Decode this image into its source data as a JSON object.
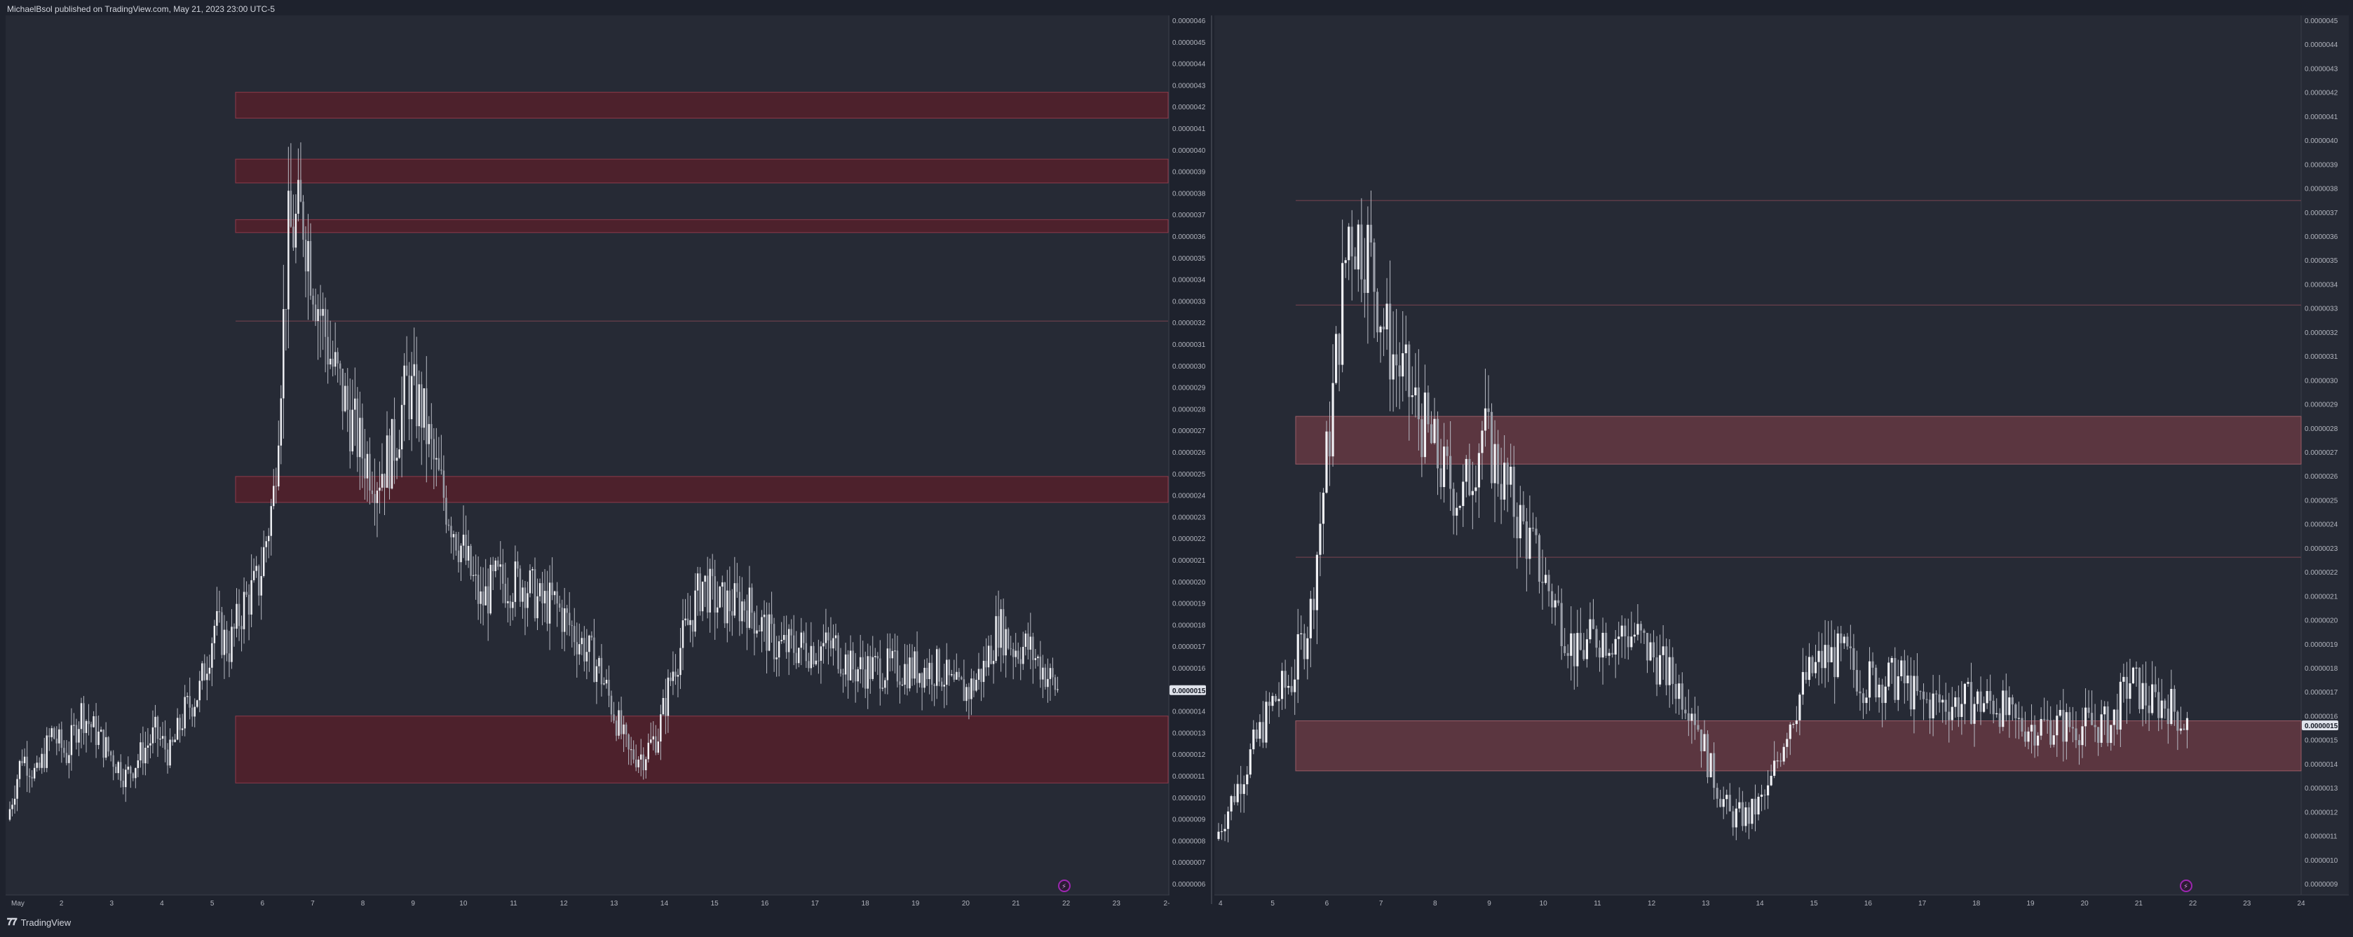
{
  "header": {
    "publisher": "MichaelBsol published on TradingView.com, May 21, 2023 23:00 UTC-5"
  },
  "footer": {
    "brand": "TradingView"
  },
  "colors": {
    "background": "#1e222d",
    "pane": "#262a35",
    "candle": "#e0e3eb",
    "zone_fill_left": "#5b1f2a",
    "zone_fill_right": "#6e3b44",
    "marker": "#9c27b0"
  },
  "chart_data": [
    {
      "type": "candlestick",
      "pane": "left",
      "current_price": "0.0000015",
      "y_ticks": [
        "0.0000046",
        "0.0000045",
        "0.0000044",
        "0.0000043",
        "0.0000042",
        "0.0000041",
        "0.0000040",
        "0.0000039",
        "0.0000038",
        "0.0000037",
        "0.0000036",
        "0.0000035",
        "0.0000034",
        "0.0000033",
        "0.0000032",
        "0.0000031",
        "0.0000030",
        "0.0000029",
        "0.0000028",
        "0.0000027",
        "0.0000026",
        "0.0000025",
        "0.0000024",
        "0.0000023",
        "0.0000022",
        "0.0000021",
        "0.0000020",
        "0.0000019",
        "0.0000018",
        "0.0000017",
        "0.0000016",
        "0.0000015",
        "0.0000014",
        "0.0000013",
        "0.0000012",
        "0.0000011",
        "0.0000010",
        "0.0000009",
        "0.0000008",
        "0.0000007",
        "0.0000006"
      ],
      "ylim": [
        6e-07,
        4.6e-06
      ],
      "x_ticks": [
        "May",
        "2",
        "3",
        "4",
        "5",
        "6",
        "7",
        "8",
        "9",
        "10",
        "11",
        "12",
        "13",
        "14",
        "15",
        "16",
        "17",
        "18",
        "19",
        "20",
        "21",
        "22",
        "23",
        "2-"
      ],
      "zones": [
        {
          "low": 4.15e-06,
          "high": 4.27e-06
        },
        {
          "low": 3.85e-06,
          "high": 3.96e-06
        },
        {
          "low": 3.62e-06,
          "high": 3.68e-06
        },
        {
          "low": 2.37e-06,
          "high": 2.49e-06
        },
        {
          "low": 1.07e-06,
          "high": 1.38e-06
        }
      ],
      "levels": [
        3.21e-06
      ],
      "series": [
        9e-07,
        1.2e-06,
        1.1e-06,
        1.3e-06,
        1.2e-06,
        1.4e-06,
        1.3e-06,
        1.2e-06,
        1.1e-06,
        1.2e-06,
        1.3e-06,
        1.2e-06,
        1.4e-06,
        1.5e-06,
        1.8e-06,
        1.7e-06,
        1.9e-06,
        2e-06,
        2.4e-06,
        3.6e-06,
        3.7e-06,
        3.3e-06,
        3e-06,
        2.8e-06,
        2.6e-06,
        2.5e-06,
        2.6e-06,
        2.9e-06,
        2.8e-06,
        2.5e-06,
        2.3e-06,
        2.1e-06,
        1.9e-06,
        2e-06,
        2e-06,
        2e-06,
        1.9e-06,
        1.9e-06,
        1.8e-06,
        1.7e-06,
        1.6e-06,
        1.4e-06,
        1.2e-06,
        1.2e-06,
        1.3e-06,
        1.6e-06,
        1.8e-06,
        2e-06,
        1.9e-06,
        1.9e-06,
        1.9e-06,
        1.8e-06,
        1.7e-06,
        1.7e-06,
        1.7e-06,
        1.7e-06,
        1.7e-06,
        1.6e-06,
        1.6e-06,
        1.6e-06,
        1.6e-06,
        1.6e-06,
        1.6e-06,
        1.6e-06,
        1.5e-06,
        1.5e-06,
        1.6e-06,
        1.8e-06,
        1.7e-06,
        1.7e-06,
        1.6e-06,
        1.5e-06
      ]
    },
    {
      "type": "candlestick",
      "pane": "right",
      "current_price": "0.0000015",
      "y_ticks": [
        "0.0000045",
        "0.0000044",
        "0.0000043",
        "0.0000042",
        "0.0000041",
        "0.0000040",
        "0.0000039",
        "0.0000038",
        "0.0000037",
        "0.0000036",
        "0.0000035",
        "0.0000034",
        "0.0000033",
        "0.0000032",
        "0.0000031",
        "0.0000030",
        "0.0000029",
        "0.0000028",
        "0.0000027",
        "0.0000026",
        "0.0000025",
        "0.0000024",
        "0.0000023",
        "0.0000022",
        "0.0000021",
        "0.0000020",
        "0.0000019",
        "0.0000018",
        "0.0000017",
        "0.0000016",
        "0.0000015",
        "0.0000014",
        "0.0000013",
        "0.0000012",
        "0.0000011",
        "0.0000010",
        "0.0000009"
      ],
      "ylim": [
        8e-07,
        4.6e-06
      ],
      "x_ticks": [
        "4",
        "5",
        "6",
        "7",
        "8",
        "9",
        "10",
        "11",
        "12",
        "13",
        "14",
        "15",
        "16",
        "17",
        "18",
        "19",
        "20",
        "21",
        "22",
        "23",
        "24"
      ],
      "zones": [
        {
          "low": 2.65e-06,
          "high": 2.86e-06
        },
        {
          "low": 1.3e-06,
          "high": 1.52e-06
        }
      ],
      "levels": [
        3.81e-06,
        3.35e-06,
        2.24e-06
      ],
      "series": [
        1e-06,
        1.2e-06,
        1.4e-06,
        1.6e-06,
        1.7e-06,
        2e-06,
        2.8e-06,
        3.7e-06,
        3.6e-06,
        3.2e-06,
        3e-06,
        2.8e-06,
        2.6e-06,
        2.5e-06,
        2.8e-06,
        2.6e-06,
        2.4e-06,
        2.2e-06,
        2e-06,
        1.8e-06,
        1.9e-06,
        1.9e-06,
        1.9e-06,
        1.8e-06,
        1.7e-06,
        1.6e-06,
        1.3e-06,
        1.1e-06,
        1.1e-06,
        1.2e-06,
        1.5e-06,
        1.7e-06,
        1.8e-06,
        1.8e-06,
        1.7e-06,
        1.7e-06,
        1.7e-06,
        1.6e-06,
        1.6e-06,
        1.6e-06,
        1.6e-06,
        1.6e-06,
        1.5e-06,
        1.5e-06,
        1.5e-06,
        1.5e-06,
        1.5e-06,
        1.5e-06,
        1.7e-06,
        1.6e-06,
        1.6e-06,
        1.5e-06
      ]
    }
  ]
}
